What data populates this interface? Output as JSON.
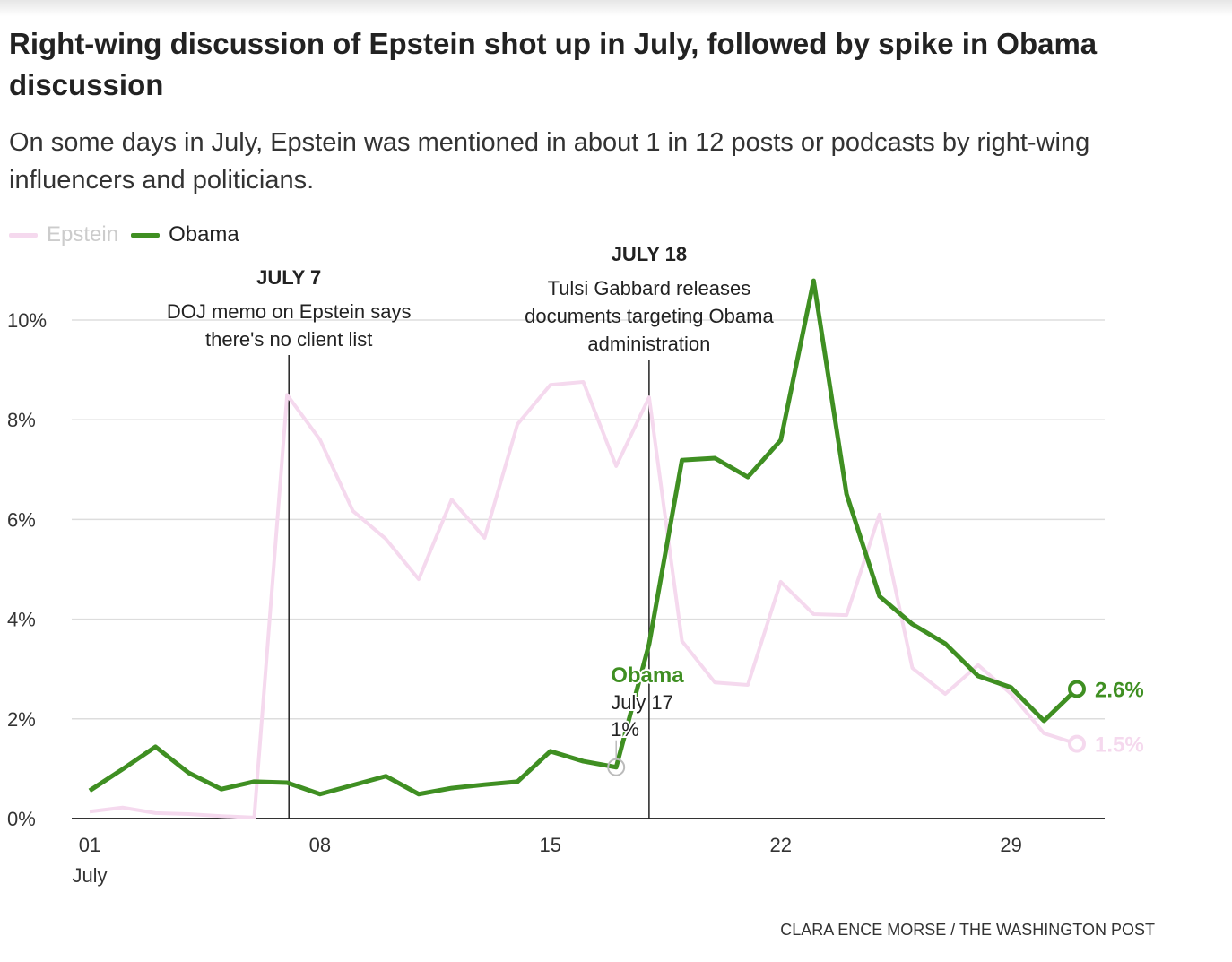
{
  "title": "Right-wing discussion of Epstein shot up in July, followed by spike in Obama discussion",
  "subtitle": "On some days in July, Epstein was mentioned in about 1 in 12 posts or podcasts by right-wing influencers and politicians.",
  "credit": "CLARA ENCE MORSE / THE WASHINGTON POST",
  "colors": {
    "epstein": "#f5d9ee",
    "obama": "#3f8f22",
    "annotation": "#222222",
    "grid": "#dddddd"
  },
  "chart_data": {
    "type": "line",
    "title": "Right-wing discussion of Epstein shot up in July, followed by spike in Obama discussion",
    "xlabel": "",
    "ylabel": "",
    "x": [
      1,
      2,
      3,
      4,
      5,
      6,
      7,
      8,
      9,
      10,
      11,
      12,
      13,
      14,
      15,
      16,
      17,
      18,
      19,
      20,
      21,
      22,
      23,
      24,
      25,
      26,
      27,
      28,
      29,
      30,
      31
    ],
    "xlim": [
      1,
      31
    ],
    "ylim": [
      0,
      10.8
    ],
    "yticks": [
      0,
      2,
      4,
      6,
      8,
      10
    ],
    "ytick_labels": [
      "0%",
      "2%",
      "4%",
      "6%",
      "8%",
      "10%"
    ],
    "xticks": [
      1,
      8,
      15,
      22,
      29
    ],
    "xtick_labels": [
      "01",
      "08",
      "15",
      "22",
      "29"
    ],
    "xtick_sublabel": "July",
    "legend": {
      "placement": "top-left",
      "entries": [
        "Epstein",
        "Obama"
      ]
    },
    "series": [
      {
        "name": "Epstein",
        "values": [
          0.14,
          0.22,
          0.11,
          0.09,
          0.05,
          0.02,
          8.5,
          7.6,
          6.17,
          5.61,
          4.8,
          6.4,
          5.63,
          7.91,
          8.7,
          8.76,
          7.07,
          8.45,
          3.56,
          2.73,
          2.68,
          4.75,
          4.1,
          4.08,
          6.1,
          3.02,
          2.5,
          3.08,
          2.5,
          1.71,
          1.5
        ],
        "end_label": "1.5%"
      },
      {
        "name": "Obama",
        "values": [
          0.56,
          0.99,
          1.44,
          0.92,
          0.59,
          0.74,
          0.72,
          0.49,
          0.67,
          0.85,
          0.49,
          0.61,
          0.68,
          0.74,
          1.35,
          1.15,
          1.03,
          3.5,
          7.19,
          7.23,
          6.85,
          7.59,
          10.79,
          6.51,
          4.46,
          3.9,
          3.51,
          2.86,
          2.63,
          1.96,
          2.6
        ],
        "end_label": "2.6%"
      }
    ],
    "annotations": [
      {
        "day": 7,
        "title": "JULY 7",
        "text": [
          "DOJ memo on Epstein says",
          "there's no client list"
        ]
      },
      {
        "day": 18,
        "title": "JULY 18",
        "text": [
          "Tulsi Gabbard releases",
          "documents targeting Obama",
          "administration"
        ]
      }
    ],
    "tooltip": {
      "series": "Obama",
      "date": "July 17",
      "value": "1%",
      "day": 17
    }
  }
}
